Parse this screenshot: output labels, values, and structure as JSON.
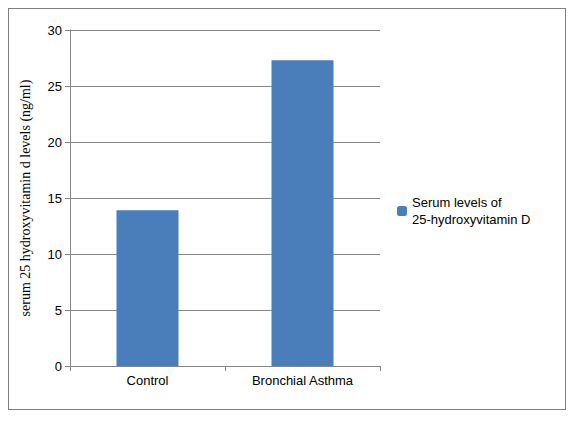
{
  "chart_data": {
    "type": "bar",
    "categories": [
      "Control",
      "Bronchial Asthma"
    ],
    "series": [
      {
        "name": "Serum levels of 25-hydroxyvitamin D",
        "color": "#4a7ebb",
        "values": [
          13.9,
          27.3
        ]
      }
    ],
    "y_label": "serum 25 hydroxyvitamin d levels (ng/ml)",
    "ylim": [
      0,
      30
    ],
    "yticks": [
      0,
      5,
      10,
      15,
      20,
      25,
      30
    ],
    "grid": true,
    "legend": "right"
  }
}
